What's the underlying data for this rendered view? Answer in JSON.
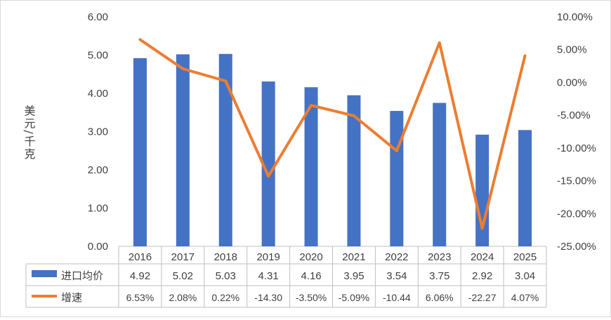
{
  "chart_data": {
    "type": "bar+line",
    "categories": [
      "2016",
      "2017",
      "2018",
      "2019",
      "2020",
      "2021",
      "2022",
      "2023",
      "2024",
      "2025"
    ],
    "series": [
      {
        "name": "进口均价",
        "type": "bar",
        "axis": "left",
        "color": "#4472C4",
        "values": [
          4.92,
          5.02,
          5.03,
          4.31,
          4.16,
          3.95,
          3.54,
          3.75,
          2.92,
          3.04
        ],
        "labels": [
          "4.92",
          "5.02",
          "5.03",
          "4.31",
          "4.16",
          "3.95",
          "3.54",
          "3.75",
          "2.92",
          "3.04"
        ]
      },
      {
        "name": "增速",
        "type": "line",
        "axis": "right",
        "color": "#ED7D31",
        "values": [
          6.53,
          2.08,
          0.22,
          -14.3,
          -3.5,
          -5.09,
          -10.44,
          6.06,
          -22.27,
          4.07
        ],
        "labels": [
          "6.53%",
          "2.08%",
          "0.22%",
          "-14.30",
          "-3.50%",
          "-5.09%",
          "-10.44",
          "6.06%",
          "-22.27",
          "4.07%"
        ]
      }
    ],
    "ylabel": "美元/千克",
    "ylim": [
      0,
      6
    ],
    "y_ticks": [
      "0.00",
      "1.00",
      "2.00",
      "3.00",
      "4.00",
      "5.00",
      "6.00"
    ],
    "y2lim": [
      -25,
      10
    ],
    "y2_ticks": [
      "-25.00%",
      "-20.00%",
      "-15.00%",
      "-10.00%",
      "-5.00%",
      "0.00%",
      "5.00%",
      "10.00%"
    ],
    "grid": false,
    "legend": "data-table"
  }
}
